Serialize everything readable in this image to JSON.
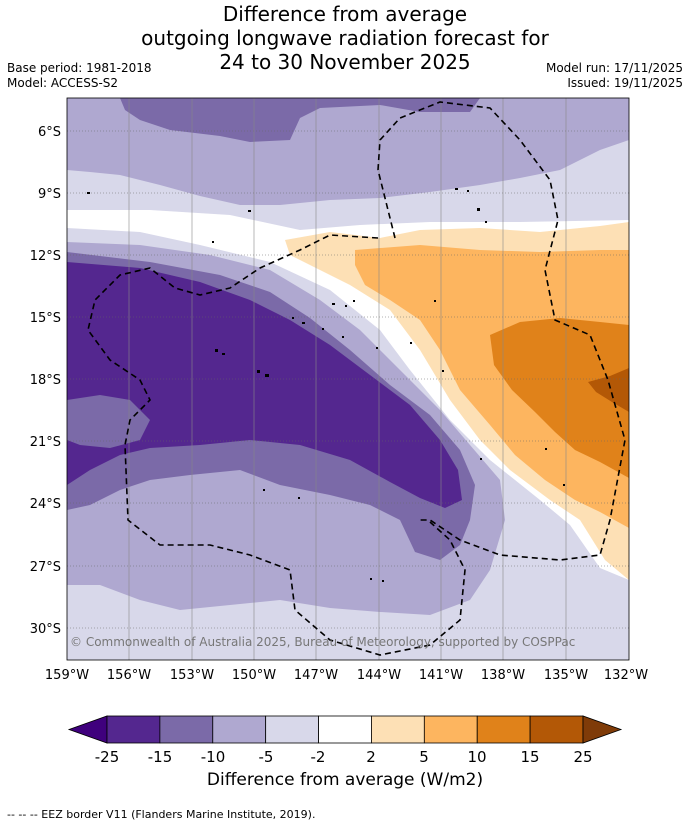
{
  "header": {
    "title_line1": "Difference from average",
    "title_line2": "outgoing longwave radiation forecast for",
    "title_line3": "24 to 30 November 2025",
    "base_period": "Base period: 1981-2018",
    "model": "Model: ACCESS-S2",
    "model_run": "Model run: 17/11/2025",
    "issued": "Issued: 19/11/2025"
  },
  "map": {
    "latitude_labels": [
      "6°S",
      "9°S",
      "12°S",
      "15°S",
      "18°S",
      "21°S",
      "24°S",
      "27°S",
      "30°S"
    ],
    "longitude_labels": [
      "159°W",
      "156°W",
      "153°W",
      "150°W",
      "147°W",
      "144°W",
      "141°W",
      "138°W",
      "135°W",
      "132°W"
    ],
    "copyright": "© Commonwealth of Australia 2025, Bureau of Meteorology, supported by COSPPac"
  },
  "colorbar": {
    "tick_labels": [
      "-25",
      "-15",
      "-10",
      "-5",
      "-2",
      "2",
      "5",
      "10",
      "15",
      "25"
    ],
    "colors": [
      "#3f007d",
      "#54278f",
      "#7b6aa8",
      "#afa8d0",
      "#d8d8ea",
      "#ffffff",
      "#fde0b5",
      "#fdb55f",
      "#e0821a",
      "#b35806",
      "#7f3b08"
    ],
    "label": "Difference from average (W/m2)"
  },
  "legend": {
    "eez_text": "--  --  -- EEZ border V11 (Flanders Marine Institute, 2019)."
  }
}
